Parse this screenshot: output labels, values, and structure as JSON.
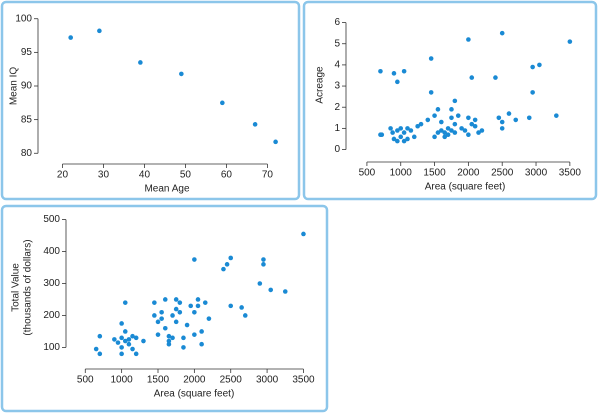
{
  "chart_data": [
    {
      "type": "scatter",
      "x_label": "Mean Age",
      "y_label": [
        "Mean IQ"
      ],
      "color": "#1a8ad4",
      "x": [
        22,
        29,
        39,
        49,
        59,
        67,
        72
      ],
      "values": [
        97.2,
        98.2,
        93.5,
        91.8,
        87.5,
        84.3,
        81.7
      ],
      "xlim": [
        15,
        76
      ],
      "xticks": [
        20,
        30,
        40,
        50,
        60,
        70
      ],
      "ylim": [
        79,
        101
      ],
      "yticks": [
        80,
        85,
        90,
        95,
        100
      ]
    },
    {
      "type": "scatter",
      "x_label": "Area (square feet)",
      "y_label": [
        "Acreage"
      ],
      "color": "#1a8ad4",
      "x": [
        700,
        720,
        700,
        900,
        950,
        1050,
        850,
        880,
        900,
        950,
        950,
        1000,
        1000,
        1050,
        1050,
        1100,
        1100,
        1150,
        1200,
        1250,
        1300,
        1400,
        1450,
        1450,
        1500,
        1500,
        1550,
        1550,
        1600,
        1600,
        1650,
        1650,
        1700,
        1700,
        1750,
        1750,
        1750,
        1800,
        1800,
        1800,
        1850,
        1900,
        1950,
        2000,
        2000,
        2000,
        2050,
        2050,
        2100,
        2100,
        2150,
        2200,
        2400,
        2450,
        2500,
        2500,
        2500,
        2600,
        2700,
        2900,
        2950,
        2950,
        3050,
        3300,
        3500
      ],
      "values": [
        0.7,
        0.7,
        3.7,
        3.6,
        3.2,
        3.7,
        1.0,
        0.8,
        0.5,
        0.4,
        0.9,
        1.0,
        0.6,
        0.8,
        0.4,
        0.5,
        1.0,
        0.9,
        0.6,
        1.1,
        1.2,
        1.4,
        4.3,
        2.7,
        1.6,
        0.6,
        1.9,
        0.8,
        1.3,
        0.9,
        0.6,
        0.8,
        1.0,
        0.7,
        1.5,
        1.9,
        0.9,
        2.3,
        1.2,
        0.8,
        1.6,
        1.0,
        0.9,
        5.2,
        1.5,
        0.7,
        1.2,
        3.4,
        1.4,
        1.1,
        0.8,
        0.9,
        3.4,
        1.5,
        5.5,
        1.3,
        1.0,
        1.7,
        1.4,
        1.5,
        3.9,
        2.7,
        4.0,
        1.6,
        5.1
      ],
      "xlim": [
        250,
        3650
      ],
      "xticks": [
        500,
        1000,
        1500,
        2000,
        2500,
        3000,
        3500
      ],
      "ylim": [
        -0.4,
        6.5
      ],
      "yticks": [
        0,
        1,
        2,
        3,
        4,
        5,
        6
      ]
    },
    {
      "type": "scatter",
      "x_label": "Area (square feet)",
      "y_label": [
        "Total Value",
        "(thousands of dollars)"
      ],
      "color": "#1a8ad4",
      "x": [
        650,
        700,
        700,
        900,
        950,
        1000,
        1000,
        1000,
        1000,
        1050,
        1050,
        1050,
        1100,
        1100,
        1150,
        1150,
        1200,
        1200,
        1300,
        1450,
        1450,
        1500,
        1500,
        1550,
        1550,
        1600,
        1600,
        1650,
        1650,
        1650,
        1700,
        1700,
        1750,
        1750,
        1750,
        1800,
        1800,
        1850,
        1850,
        1900,
        1950,
        2000,
        2000,
        2000,
        2050,
        2050,
        2100,
        2100,
        2150,
        2200,
        2400,
        2450,
        2500,
        2500,
        2650,
        2700,
        2900,
        2950,
        2950,
        3050,
        3250,
        3500
      ],
      "values": [
        95,
        135,
        80,
        125,
        115,
        130,
        100,
        80,
        175,
        150,
        240,
        120,
        110,
        125,
        95,
        135,
        130,
        80,
        120,
        200,
        240,
        180,
        140,
        190,
        210,
        160,
        250,
        135,
        120,
        110,
        130,
        200,
        250,
        220,
        180,
        240,
        210,
        130,
        100,
        170,
        230,
        375,
        140,
        210,
        250,
        230,
        150,
        110,
        240,
        190,
        345,
        360,
        380,
        230,
        225,
        200,
        300,
        375,
        360,
        280,
        275,
        455
      ],
      "xlim": [
        290,
        3700
      ],
      "xticks": [
        500,
        1000,
        1500,
        2000,
        2500,
        3000,
        3500
      ],
      "ylim": [
        45,
        530
      ],
      "yticks": [
        100,
        200,
        300,
        400,
        500
      ]
    }
  ]
}
